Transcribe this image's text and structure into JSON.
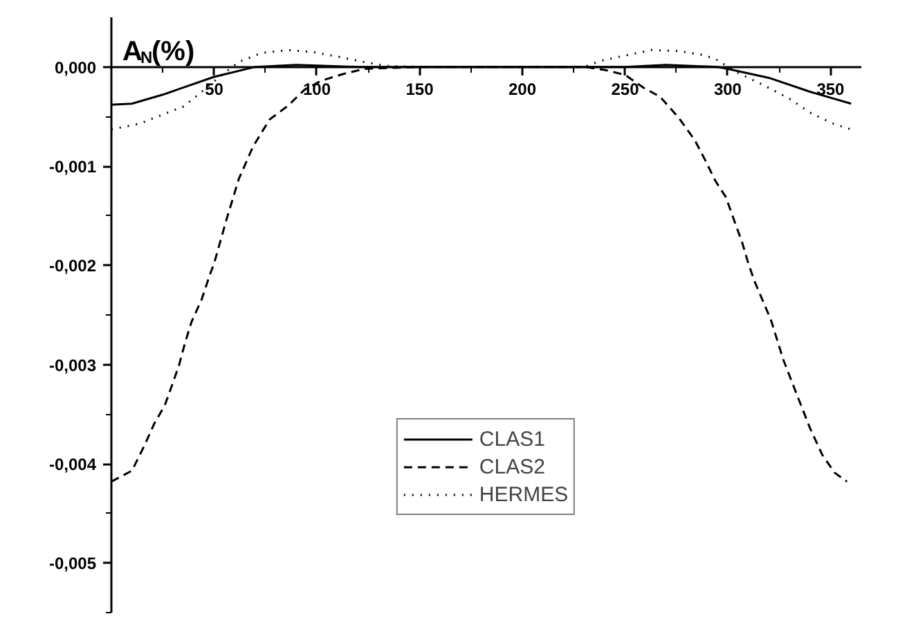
{
  "chart_data": {
    "type": "line",
    "ylabel": "A$_{N}$(%)",
    "xlim": [
      0,
      365
    ],
    "ylim": [
      -0.0055,
      0.0005
    ],
    "xticks": [
      50,
      100,
      150,
      200,
      250,
      300,
      350
    ],
    "yticks": [
      {
        "value": 0,
        "label": "0,000"
      },
      {
        "value": -0.001,
        "label": "-0,001"
      },
      {
        "value": -0.002,
        "label": "-0,002"
      },
      {
        "value": -0.003,
        "label": "-0,003"
      },
      {
        "value": -0.004,
        "label": "-0,004"
      },
      {
        "value": -0.005,
        "label": "-0,005"
      }
    ],
    "grid": false,
    "legend": "bottom",
    "marker": "none",
    "series": [
      {
        "name": "CLAS1",
        "color": "#000000",
        "line_style": "solid",
        "x": [
          0,
          10,
          25,
          50,
          70,
          90,
          120,
          150,
          200,
          250,
          270,
          295,
          300,
          320,
          340,
          350,
          360
        ],
        "values": [
          -0.00038,
          -0.00037,
          -0.00028,
          -0.0001,
          0,
          2e-05,
          0,
          0,
          0,
          0,
          2e-05,
          0,
          -2e-05,
          -0.00011,
          -0.00025,
          -0.00031,
          -0.00037
        ]
      },
      {
        "name": "CLAS2",
        "color": "#000000",
        "line_style": "dashed",
        "x": [
          0,
          10,
          16,
          21,
          26,
          30,
          33,
          36,
          39,
          44,
          48,
          50,
          56,
          62,
          69,
          77,
          86,
          94,
          102,
          113,
          123,
          150,
          200,
          230,
          240,
          250,
          259,
          267,
          276,
          284,
          289,
          294,
          299,
          303,
          307,
          310,
          313,
          321,
          327,
          333,
          340,
          346,
          352,
          358
        ],
        "values": [
          -0.00418,
          -0.00407,
          -0.00382,
          -0.00359,
          -0.00341,
          -0.00318,
          -0.003,
          -0.00277,
          -0.00257,
          -0.00234,
          -0.00209,
          -0.00198,
          -0.00154,
          -0.00113,
          -0.0008,
          -0.00053,
          -0.00039,
          -0.00023,
          -0.00014,
          -7e-05,
          -2e-05,
          0,
          0,
          0,
          -3e-05,
          -8e-05,
          -0.00021,
          -0.0003,
          -0.00051,
          -0.00074,
          -0.00094,
          -0.00115,
          -0.00131,
          -0.00154,
          -0.00177,
          -0.00198,
          -0.00216,
          -0.00255,
          -0.00295,
          -0.00327,
          -0.00364,
          -0.00391,
          -0.00409,
          -0.00418
        ]
      },
      {
        "name": "HERMES",
        "color": "#000000",
        "line_style": "dotted",
        "x": [
          0,
          14,
          25,
          35,
          44,
          52,
          62,
          73,
          86,
          98,
          111,
          123,
          134,
          150,
          230,
          238,
          249,
          263,
          276,
          288,
          294,
          305,
          317,
          330,
          340,
          351,
          360
        ],
        "values": [
          -0.00063,
          -0.00057,
          -0.00048,
          -0.0004,
          -0.00025,
          -0.00011,
          5e-05,
          0.00014,
          0.00017,
          0.00015,
          0.0001,
          5e-05,
          1e-05,
          0,
          0,
          6e-05,
          0.00011,
          0.00017,
          0.00016,
          0.00012,
          8e-05,
          -6e-05,
          -0.00018,
          -0.00032,
          -0.00046,
          -0.00057,
          -0.00063
        ]
      }
    ]
  }
}
